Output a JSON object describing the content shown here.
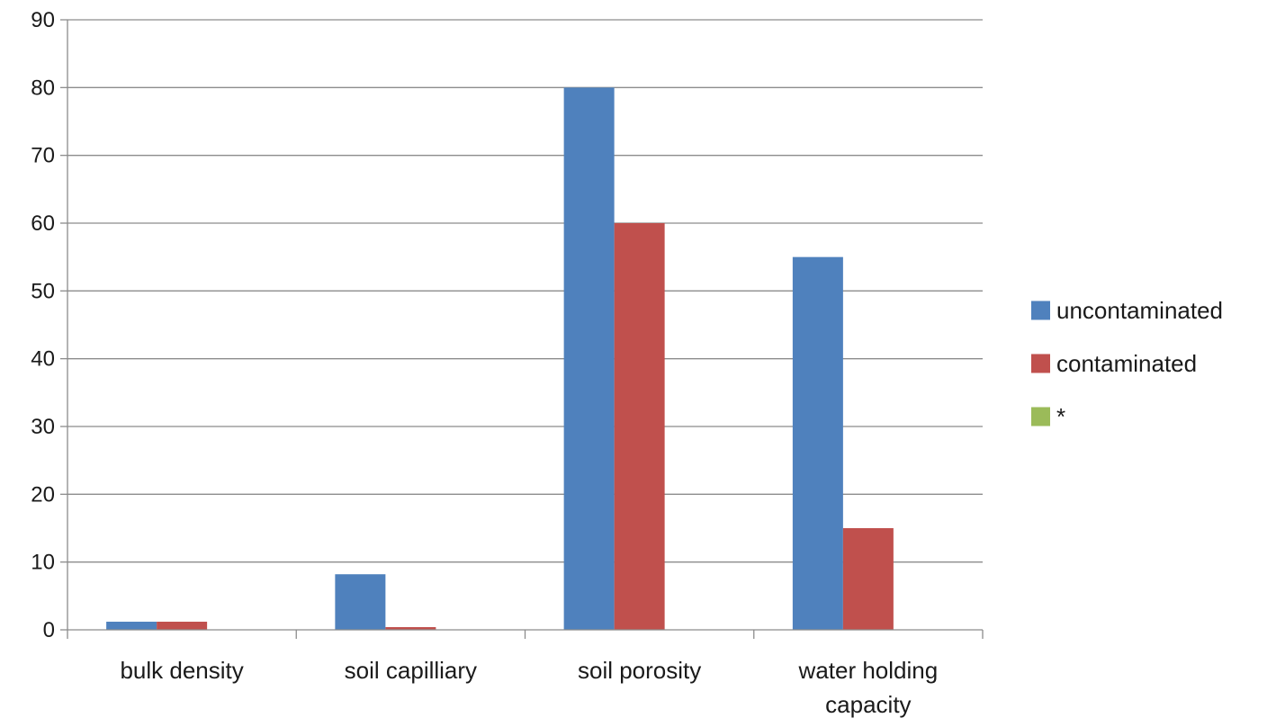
{
  "chart_data": {
    "type": "bar",
    "title": "",
    "xlabel": "",
    "ylabel": "",
    "categories": [
      [
        "bulk density"
      ],
      [
        "soil capilliary"
      ],
      [
        "soil porosity"
      ],
      [
        "water holding",
        "capacity"
      ]
    ],
    "series": [
      {
        "name": "uncontaminated",
        "color": "#4F81BD",
        "values": [
          1.2,
          8.2,
          80,
          55
        ]
      },
      {
        "name": "contaminated",
        "color": "#C0504D",
        "values": [
          1.2,
          0.4,
          60,
          15
        ]
      },
      {
        "name": "*",
        "color": "#9BBB59",
        "values": [
          0,
          0,
          0,
          0
        ]
      }
    ],
    "ylim": [
      0,
      90
    ],
    "yticks": [
      0,
      10,
      20,
      30,
      40,
      50,
      60,
      70,
      80,
      90
    ],
    "grid": true,
    "legend_position": "right"
  }
}
